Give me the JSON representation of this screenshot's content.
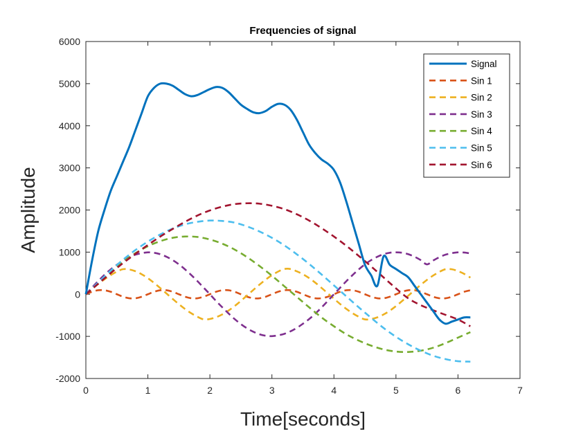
{
  "chart_data": {
    "type": "line",
    "title": "Frequencies of signal",
    "xlabel": "Time[seconds]",
    "ylabel": "Amplitude",
    "xlim": [
      0,
      7
    ],
    "ylim": [
      -2000,
      6000
    ],
    "xticks": [
      0,
      1,
      2,
      3,
      4,
      5,
      6,
      7
    ],
    "yticks": [
      -2000,
      -1000,
      0,
      1000,
      2000,
      3000,
      4000,
      5000,
      6000
    ],
    "xtick_labels": [
      "0",
      "1",
      "2",
      "3",
      "4",
      "5",
      "6",
      "7"
    ],
    "ytick_labels": [
      "-2000",
      "-1000",
      "0",
      "1000",
      "2000",
      "3000",
      "4000",
      "5000",
      "6000"
    ],
    "grid": false,
    "legend_position": "top-right",
    "series": [
      {
        "name": "Signal",
        "color": "#0072BD",
        "style": "solid",
        "x": [
          0,
          0.1,
          0.2,
          0.3,
          0.4,
          0.5,
          0.6,
          0.7,
          0.8,
          0.9,
          1.0,
          1.1,
          1.2,
          1.3,
          1.4,
          1.5,
          1.6,
          1.7,
          1.8,
          1.9,
          2.0,
          2.1,
          2.2,
          2.3,
          2.4,
          2.5,
          2.6,
          2.7,
          2.8,
          2.9,
          3.0,
          3.1,
          3.2,
          3.3,
          3.4,
          3.5,
          3.6,
          3.7,
          3.8,
          3.9,
          4.0,
          4.1,
          4.2,
          4.3,
          4.4,
          4.5,
          4.6,
          4.7,
          4.8,
          4.9,
          5.0,
          5.1,
          5.2,
          5.3,
          5.4,
          5.5,
          5.6,
          5.7,
          5.8,
          5.9,
          6.0,
          6.1,
          6.2
        ],
        "y": [
          0,
          800,
          1500,
          2000,
          2450,
          2800,
          3150,
          3500,
          3900,
          4300,
          4700,
          4900,
          5000,
          5000,
          4950,
          4850,
          4750,
          4700,
          4730,
          4800,
          4870,
          4920,
          4900,
          4800,
          4650,
          4500,
          4400,
          4320,
          4300,
          4350,
          4450,
          4520,
          4500,
          4380,
          4150,
          3850,
          3550,
          3350,
          3200,
          3100,
          2950,
          2650,
          2200,
          1700,
          1200,
          700,
          450,
          200,
          900,
          700,
          600,
          500,
          400,
          200,
          0,
          -200,
          -400,
          -600,
          -700,
          -650,
          -600,
          -550,
          -550
        ]
      },
      {
        "name": "Sin 1",
        "color": "#D95319",
        "style": "dashed",
        "x": [
          0,
          0.1,
          0.2,
          0.3,
          0.4,
          0.5,
          0.6,
          0.7,
          0.8,
          0.9,
          1.0,
          1.1,
          1.2,
          1.3,
          1.4,
          1.5,
          1.6,
          1.7,
          1.8,
          1.9,
          2.0,
          2.1,
          2.2,
          2.3,
          2.4,
          2.5,
          2.6,
          2.7,
          2.8,
          2.9,
          3.0,
          3.1,
          3.2,
          3.3,
          3.4,
          3.5,
          3.6,
          3.7,
          3.8,
          3.9,
          4.0,
          4.1,
          4.2,
          4.3,
          4.4,
          4.5,
          4.6,
          4.7,
          4.8,
          4.9,
          5.0,
          5.1,
          5.2,
          5.3,
          5.4,
          5.5,
          5.6,
          5.7,
          5.8,
          5.9,
          6.0,
          6.1,
          6.2
        ],
        "y": [
          0,
          59,
          95,
          95,
          59,
          0,
          -59,
          -95,
          -95,
          -59,
          0,
          59,
          95,
          95,
          59,
          0,
          -59,
          -95,
          -95,
          -59,
          0,
          59,
          95,
          95,
          59,
          0,
          -59,
          -95,
          -95,
          -59,
          0,
          59,
          95,
          95,
          59,
          0,
          -59,
          -95,
          -95,
          -59,
          0,
          59,
          95,
          95,
          59,
          0,
          -59,
          -95,
          -95,
          -59,
          0,
          59,
          95,
          95,
          59,
          0,
          -59,
          -95,
          -95,
          -59,
          0,
          59,
          95
        ]
      },
      {
        "name": "Sin 2",
        "color": "#EDB120",
        "style": "dashed",
        "x": [
          0,
          0.1,
          0.2,
          0.3,
          0.4,
          0.5,
          0.6,
          0.7,
          0.8,
          0.9,
          1.0,
          1.1,
          1.2,
          1.3,
          1.4,
          1.5,
          1.6,
          1.7,
          1.8,
          1.9,
          2.0,
          2.1,
          2.2,
          2.3,
          2.4,
          2.5,
          2.6,
          2.7,
          2.8,
          2.9,
          3.0,
          3.1,
          3.2,
          3.3,
          3.4,
          3.5,
          3.6,
          3.7,
          3.8,
          3.9,
          4.0,
          4.1,
          4.2,
          4.3,
          4.4,
          4.5,
          4.6,
          4.7,
          4.8,
          4.9,
          5.0,
          5.1,
          5.2,
          5.3,
          5.4,
          5.5,
          5.6,
          5.7,
          5.8,
          5.9,
          6.0,
          6.1,
          6.2
        ],
        "y": [
          0,
          124,
          244,
          355,
          454,
          537,
          595,
          588,
          546,
          475,
          381,
          269,
          146,
          18,
          -111,
          -236,
          -351,
          -452,
          -535,
          -597,
          -587,
          -546,
          -479,
          -388,
          -279,
          -157,
          -28,
          102,
          229,
          348,
          452,
          538,
          599,
          599,
          545,
          476,
          384,
          274,
          151,
          23,
          -106,
          -232,
          -348,
          -450,
          -534,
          -597,
          -589,
          -548,
          -481,
          -391,
          -282,
          -160,
          -32,
          97,
          223,
          341,
          445,
          531,
          595,
          593,
          550,
          484,
          395
        ]
      },
      {
        "name": "Sin 3",
        "color": "#7E2F8E",
        "style": "dashed",
        "x": [
          0,
          0.1,
          0.2,
          0.3,
          0.4,
          0.5,
          0.6,
          0.7,
          0.8,
          0.9,
          1.0,
          1.1,
          1.2,
          1.3,
          1.4,
          1.5,
          1.6,
          1.7,
          1.8,
          1.9,
          2.0,
          2.1,
          2.2,
          2.3,
          2.4,
          2.5,
          2.6,
          2.7,
          2.8,
          2.9,
          3.0,
          3.1,
          3.2,
          3.3,
          3.4,
          3.5,
          3.6,
          3.7,
          3.8,
          3.9,
          4.0,
          4.1,
          4.2,
          4.3,
          4.4,
          4.5,
          4.6,
          4.7,
          4.8,
          4.9,
          5.0,
          5.1,
          5.2,
          5.3,
          5.4,
          5.5,
          5.6,
          5.7,
          5.8,
          5.9,
          6.0,
          6.1,
          6.2
        ],
        "y": [
          0,
          160,
          315,
          460,
          590,
          700,
          800,
          880,
          940,
          975,
          995,
          985,
          950,
          890,
          810,
          710,
          590,
          455,
          310,
          155,
          0,
          -160,
          -310,
          -455,
          -590,
          -710,
          -810,
          -890,
          -950,
          -985,
          -995,
          -975,
          -940,
          -880,
          -800,
          -700,
          -590,
          -460,
          -315,
          -160,
          0,
          155,
          310,
          455,
          590,
          710,
          810,
          890,
          950,
          985,
          995,
          985,
          950,
          890,
          810,
          710,
          800,
          880,
          940,
          975,
          995,
          990,
          970
        ]
      },
      {
        "name": "Sin 4",
        "color": "#77AC30",
        "style": "dashed",
        "x": [
          0,
          0.2,
          0.4,
          0.6,
          0.8,
          1.0,
          1.2,
          1.4,
          1.6,
          1.8,
          2.0,
          2.2,
          2.4,
          2.6,
          2.8,
          3.0,
          3.2,
          3.4,
          3.6,
          3.8,
          4.0,
          4.2,
          4.4,
          4.6,
          4.8,
          5.0,
          5.2,
          5.4,
          5.6,
          5.8,
          6.0,
          6.2
        ],
        "y": [
          0,
          270,
          530,
          770,
          975,
          1140,
          1260,
          1340,
          1370,
          1360,
          1300,
          1200,
          1060,
          880,
          670,
          440,
          190,
          -60,
          -310,
          -550,
          -760,
          -950,
          -1100,
          -1220,
          -1310,
          -1360,
          -1370,
          -1340,
          -1270,
          -1160,
          -1030,
          -900
        ]
      },
      {
        "name": "Sin 5",
        "color": "#4DBEEE",
        "style": "dashed",
        "x": [
          0,
          0.2,
          0.4,
          0.6,
          0.8,
          1.0,
          1.2,
          1.4,
          1.6,
          1.8,
          2.0,
          2.2,
          2.4,
          2.6,
          2.8,
          3.0,
          3.2,
          3.4,
          3.6,
          3.8,
          4.0,
          4.2,
          4.4,
          4.6,
          4.8,
          5.0,
          5.2,
          5.4,
          5.6,
          5.8,
          6.0,
          6.2
        ],
        "y": [
          0,
          280,
          560,
          820,
          1050,
          1250,
          1420,
          1560,
          1660,
          1720,
          1750,
          1740,
          1700,
          1610,
          1490,
          1340,
          1160,
          950,
          720,
          470,
          210,
          -50,
          -310,
          -560,
          -800,
          -1010,
          -1190,
          -1340,
          -1460,
          -1540,
          -1590,
          -1600
        ]
      },
      {
        "name": "Sin 6",
        "color": "#A2142F",
        "style": "dashed",
        "x": [
          0,
          0.2,
          0.4,
          0.6,
          0.8,
          1.0,
          1.2,
          1.4,
          1.6,
          1.8,
          2.0,
          2.2,
          2.4,
          2.6,
          2.8,
          3.0,
          3.2,
          3.4,
          3.6,
          3.8,
          4.0,
          4.2,
          4.4,
          4.6,
          4.8,
          5.0,
          5.2,
          5.4,
          5.6,
          5.8,
          6.0,
          6.2
        ],
        "y": [
          0,
          250,
          500,
          740,
          960,
          1170,
          1370,
          1550,
          1720,
          1870,
          1990,
          2080,
          2140,
          2160,
          2150,
          2100,
          2020,
          1900,
          1750,
          1570,
          1370,
          1150,
          910,
          660,
          400,
          140,
          -100,
          -260,
          -380,
          -490,
          -600,
          -760
        ]
      }
    ]
  }
}
